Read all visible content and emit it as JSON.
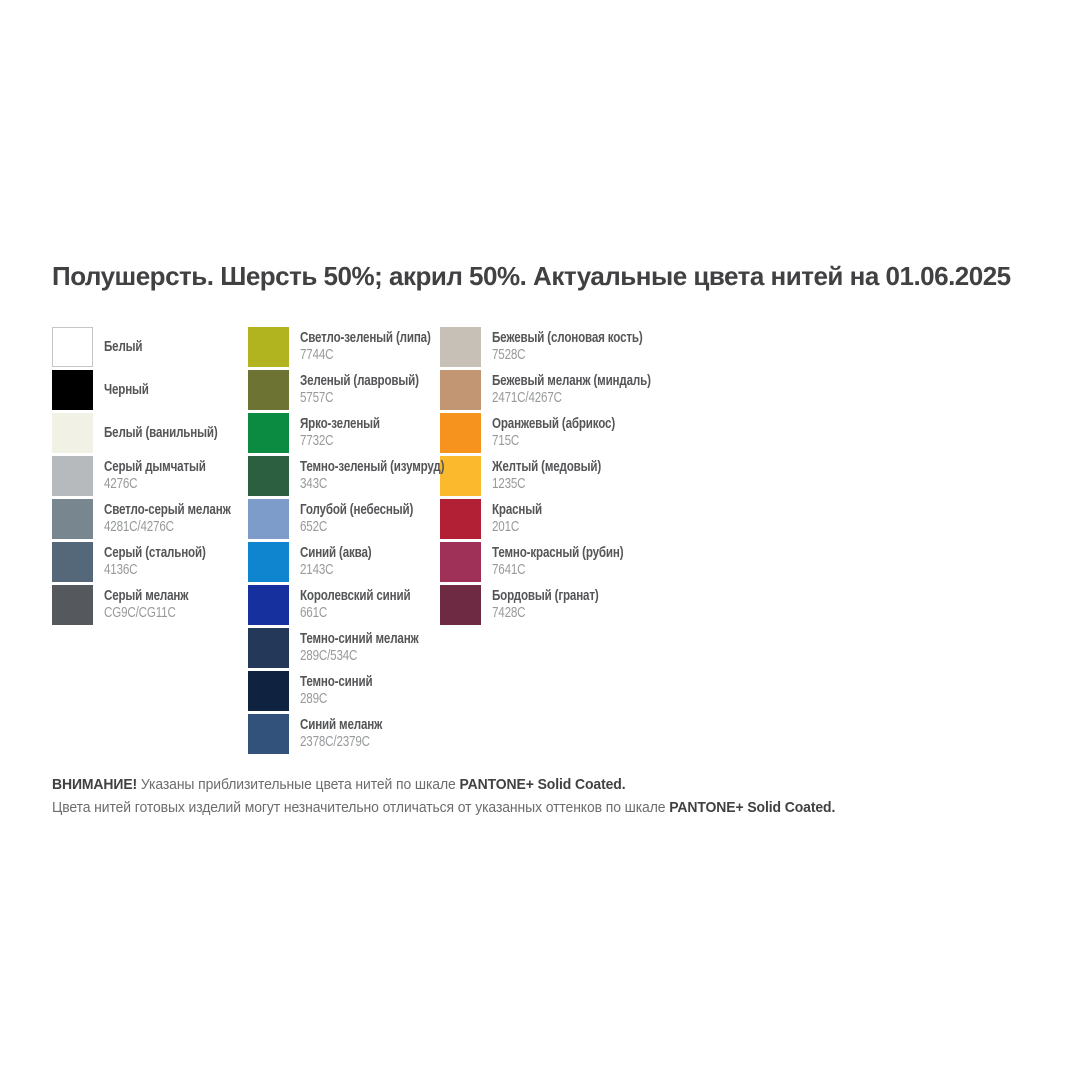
{
  "title": "Полушерсть. Шерсть 50%; акрил 50%. Актуальные цвета нитей на 01.06.2025",
  "columns": [
    {
      "items": [
        {
          "name": "Белый",
          "code": "",
          "color": "#FFFFFF",
          "border": true
        },
        {
          "name": "Черный",
          "code": "",
          "color": "#000000"
        },
        {
          "name": "Белый (ванильный)",
          "code": "",
          "color": "#F2F1E5"
        },
        {
          "name": "Серый дымчатый",
          "code": "4276C",
          "color": "#B6BABD"
        },
        {
          "name": "Светло-серый меланж",
          "code": "4281C/4276C",
          "color": "#78868F"
        },
        {
          "name": "Серый (стальной)",
          "code": "4136C",
          "color": "#54687A"
        },
        {
          "name": "Серый меланж",
          "code": "CG9C/CG11C",
          "color": "#55585C"
        }
      ]
    },
    {
      "items": [
        {
          "name": "Светло-зеленый (липа)",
          "code": "7744C",
          "color": "#B1B41F"
        },
        {
          "name": "Зеленый (лавровый)",
          "code": "5757C",
          "color": "#6D7333"
        },
        {
          "name": "Ярко-зеленый",
          "code": "7732C",
          "color": "#0B8A42"
        },
        {
          "name": "Темно-зеленый (изумруд)",
          "code": "343C",
          "color": "#2C5E40"
        },
        {
          "name": "Голубой (небесный)",
          "code": "652C",
          "color": "#7D9CC9"
        },
        {
          "name": "Синий (аква)",
          "code": "2143C",
          "color": "#0E85CE"
        },
        {
          "name": "Королевский синий",
          "code": "661C",
          "color": "#16319E"
        },
        {
          "name": "Темно-синий меланж",
          "code": "289C/534C",
          "color": "#24395A"
        },
        {
          "name": "Темно-синий",
          "code": "289C",
          "color": "#0F2240"
        },
        {
          "name": "Синий меланж",
          "code": "2378C/2379C",
          "color": "#32517B"
        }
      ]
    },
    {
      "items": [
        {
          "name": "Бежевый (слоновая кость)",
          "code": "7528C",
          "color": "#C7C0B6"
        },
        {
          "name": "Бежевый меланж (миндаль)",
          "code": "2471C/4267C",
          "color": "#C29673"
        },
        {
          "name": "Оранжевый (абрикос)",
          "code": "715C",
          "color": "#F6921E"
        },
        {
          "name": "Желтый (медовый)",
          "code": "1235C",
          "color": "#FBBA2D"
        },
        {
          "name": "Красный",
          "code": "201C",
          "color": "#B22035"
        },
        {
          "name": "Темно-красный (рубин)",
          "code": "7641C",
          "color": "#9F3158"
        },
        {
          "name": "Бордовый (гранат)",
          "code": "7428C",
          "color": "#6E2A43"
        }
      ]
    }
  ],
  "footer": {
    "attention": "ВНИМАНИЕ!",
    "line1_text": " Указаны приблизительные цвета нитей по шкале ",
    "pantone": "PANTONE+ Solid Coated.",
    "line2_text": "Цвета нитей готовых изделий могут незначительно отличаться от указанных оттенков по шкале "
  }
}
